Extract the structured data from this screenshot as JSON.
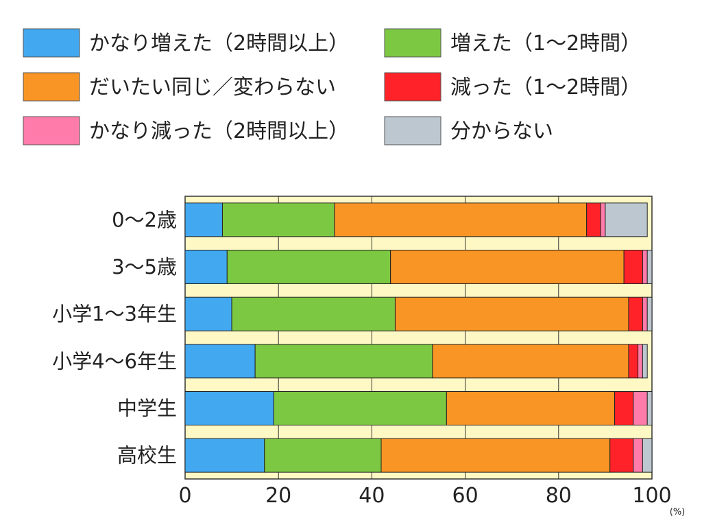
{
  "chart_data": {
    "type": "bar",
    "orientation": "horizontal",
    "stacked": true,
    "categories": [
      "0～2歳",
      "3～5歳",
      "小学1～3年生",
      "小学4～6年生",
      "中学生",
      "高校生"
    ],
    "series": [
      {
        "name": "かなり増えた（2時間以上）",
        "color": "#42a8f0",
        "values": [
          8,
          9,
          10,
          15,
          19,
          17
        ]
      },
      {
        "name": "増えた（1～2時間）",
        "color": "#7dc843",
        "values": [
          24,
          35,
          35,
          38,
          37,
          25
        ]
      },
      {
        "name": "だいたい同じ／変わらない",
        "color": "#f99525",
        "values": [
          54,
          50,
          50,
          42,
          36,
          49
        ]
      },
      {
        "name": "減った（1～2時間）",
        "color": "#ff2228",
        "values": [
          3,
          4,
          3,
          2,
          4,
          5
        ]
      },
      {
        "name": "かなり減った（2時間以上）",
        "color": "#ff7ba9",
        "values": [
          1,
          1,
          1,
          1,
          3,
          2
        ]
      },
      {
        "name": "分からない",
        "color": "#bcc7cf",
        "values": [
          9,
          1,
          1,
          1,
          1,
          2
        ]
      }
    ],
    "xlim": [
      0,
      100
    ],
    "x_ticks": [
      0,
      20,
      40,
      60,
      80,
      100
    ],
    "x_unit": "(%)",
    "grid": true,
    "legend_position": "top",
    "plot_background": "#fef8c4"
  }
}
